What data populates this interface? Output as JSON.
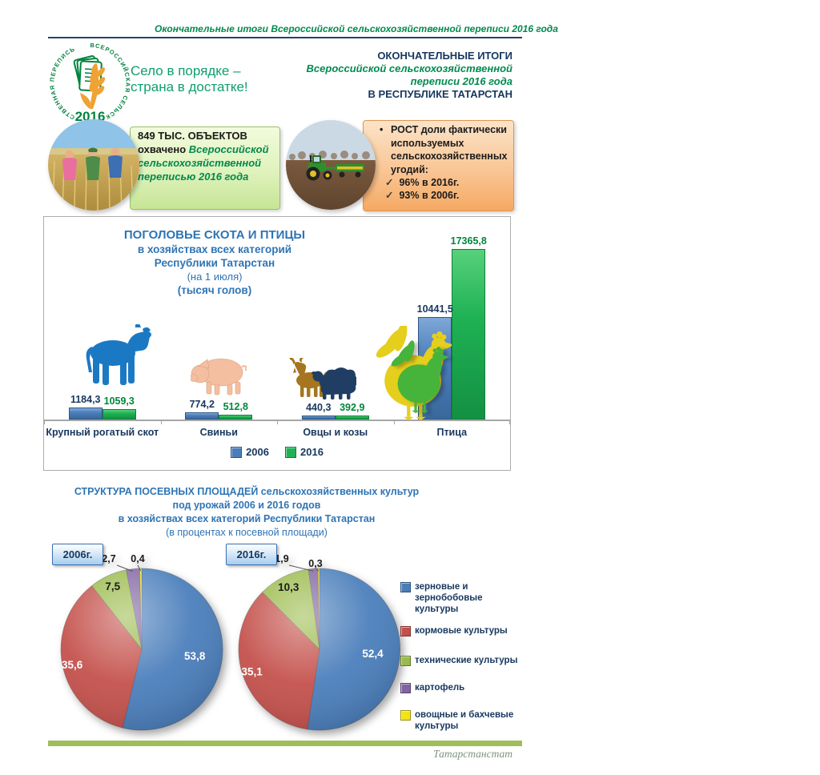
{
  "header": {
    "note": "Окончательные итоги Всероссийской сельскохозяйственной переписи 2016 года"
  },
  "logo": {
    "ring_text": "ВСЕРОССИЙСКАЯ  СЕЛЬСКОХОЗЯЙСТВЕННАЯ  ПЕРЕПИСЬ",
    "year": "2016"
  },
  "slogan": {
    "line1": "Село в порядке –",
    "line2": "страна в достатке!"
  },
  "title_block": {
    "line1": "ОКОНЧАТЕЛЬНЫЕ ИТОГИ",
    "line2": "Всероссийской сельскохозяйственной",
    "line3": "переписи 2016 года",
    "line4": "В РЕСПУБЛИКЕ ТАТАРСТАН"
  },
  "green_box": {
    "line1": "849 ТЫС. ОБЪЕКТОВ",
    "line2_black": "охвачено",
    "line2_green": "Всероссийской",
    "line3": "сельскохозяйственной",
    "line4": "переписью 2016 года"
  },
  "orange_box": {
    "bullet": "•",
    "lead_bold": "РОСТ",
    "line1_rest": "доли фактически",
    "line2": "используемых",
    "line3": "сельскохозяйственных",
    "line4": "угодий:",
    "check": "✓",
    "item1": "96% в 2016г.",
    "item2": "93% в 2006г."
  },
  "chart_data": [
    {
      "type": "bar",
      "title": "ПОГОЛОВЬЕ СКОТА И ПТИЦЫ",
      "subtitle": "в хозяйствах всех категорий",
      "subtitle2": "Республики Татарстан",
      "note": "(на 1 июля)",
      "units": "(тысяч голов)",
      "categories": [
        "Крупный рогатый скот",
        "Свиньи",
        "Овцы и козы",
        "Птица"
      ],
      "series": [
        {
          "name": "2006",
          "color": "#4A7EBB",
          "values": [
            1184.3,
            774.2,
            440.3,
            10441.5
          ],
          "labels": [
            "1184,3",
            "774,2",
            "440,3",
            "10441,5"
          ]
        },
        {
          "name": "2016",
          "color": "#1FB254",
          "values": [
            1059.3,
            512.8,
            392.9,
            17365.8
          ],
          "labels": [
            "1059,3",
            "512,8",
            "392,9",
            "17365,8"
          ]
        }
      ],
      "ylim": [
        0,
        17365.8
      ],
      "grid": false,
      "legend_position": "bottom"
    },
    {
      "type": "pie",
      "year_label": "2006г.",
      "labels": [
        "зерновые и зернобобовые культуры",
        "кормовые культуры",
        "технические культуры",
        "картофель",
        "овощные и бахчевые культуры"
      ],
      "values": [
        53.8,
        35.6,
        7.5,
        2.7,
        0.4
      ],
      "display": [
        "53,8",
        "35,6",
        "7,5",
        "2,7",
        "0,4"
      ],
      "colors": [
        "#4A7EBB",
        "#C4504B",
        "#9ABA4A",
        "#8064A2",
        "#F2E319"
      ]
    },
    {
      "type": "pie",
      "year_label": "2016г.",
      "labels": [
        "зерновые и зернобобовые культуры",
        "кормовые культуры",
        "технические культуры",
        "картофель",
        "овощные и бахчевые культуры"
      ],
      "values": [
        52.4,
        35.1,
        10.3,
        1.9,
        0.3
      ],
      "display": [
        "52,4",
        "35,1",
        "10,3",
        "1,9",
        "0,3"
      ],
      "colors": [
        "#4A7EBB",
        "#C4504B",
        "#9ABA4A",
        "#8064A2",
        "#F2E319"
      ]
    }
  ],
  "pie_section": {
    "title1": "СТРУКТУРА ПОСЕВНЫХ ПЛОЩАДЕЙ сельскохозяйственных культур",
    "title2": "под урожай 2006 и 2016 годов",
    "title3": "в хозяйствах всех категорий Республики Татарстан",
    "title4": "(в процентах к посевной площади)",
    "legend": [
      "зерновые и зернобобовые культуры",
      "кормовые культуры",
      "технические культуры",
      "картофель",
      "овощные и бахчевые культуры"
    ]
  },
  "footer": {
    "source": "Татарстанстат"
  }
}
